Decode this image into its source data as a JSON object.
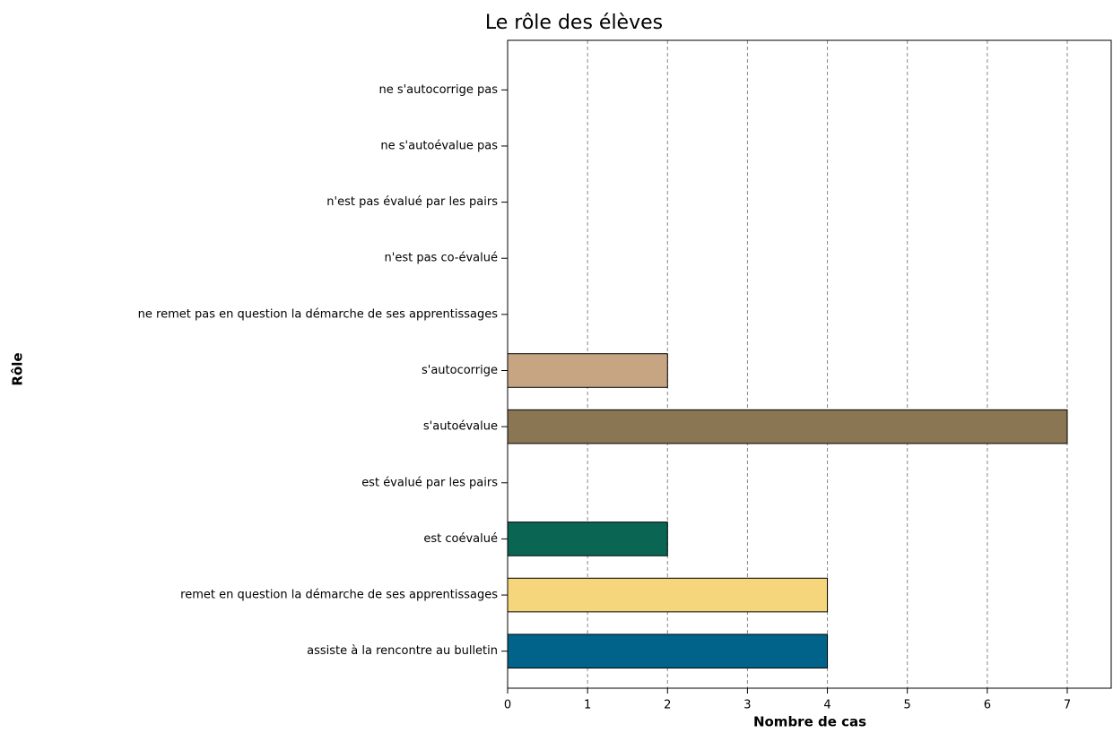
{
  "chart_data": {
    "type": "bar",
    "orientation": "horizontal",
    "title": "Le rôle des élèves",
    "xlabel": "Nombre de cas",
    "ylabel": "Rôle",
    "categories": [
      "ne s'autocorrige pas",
      "ne s'autoévalue pas",
      "n'est pas évalué par les pairs",
      "n'est pas  co-évalué",
      "ne remet pas en question la démarche de ses apprentissages",
      "s'autocorrige",
      "s'autoévalue",
      "est évalué par les pairs",
      "est coévalué",
      "remet en question la démarche de ses apprentissages",
      "assiste à la rencontre au bulletin"
    ],
    "values": [
      0,
      0,
      0,
      0,
      0,
      2,
      7,
      0,
      2,
      4,
      4
    ],
    "colors": [
      null,
      null,
      null,
      null,
      null,
      "#c8a582",
      "#8b7653",
      null,
      "#0a6652",
      "#f6d67c",
      "#02638a"
    ],
    "xlim": [
      0,
      7.55
    ],
    "xticks": [
      0,
      1,
      2,
      3,
      4,
      5,
      6,
      7
    ],
    "grid": true
  }
}
